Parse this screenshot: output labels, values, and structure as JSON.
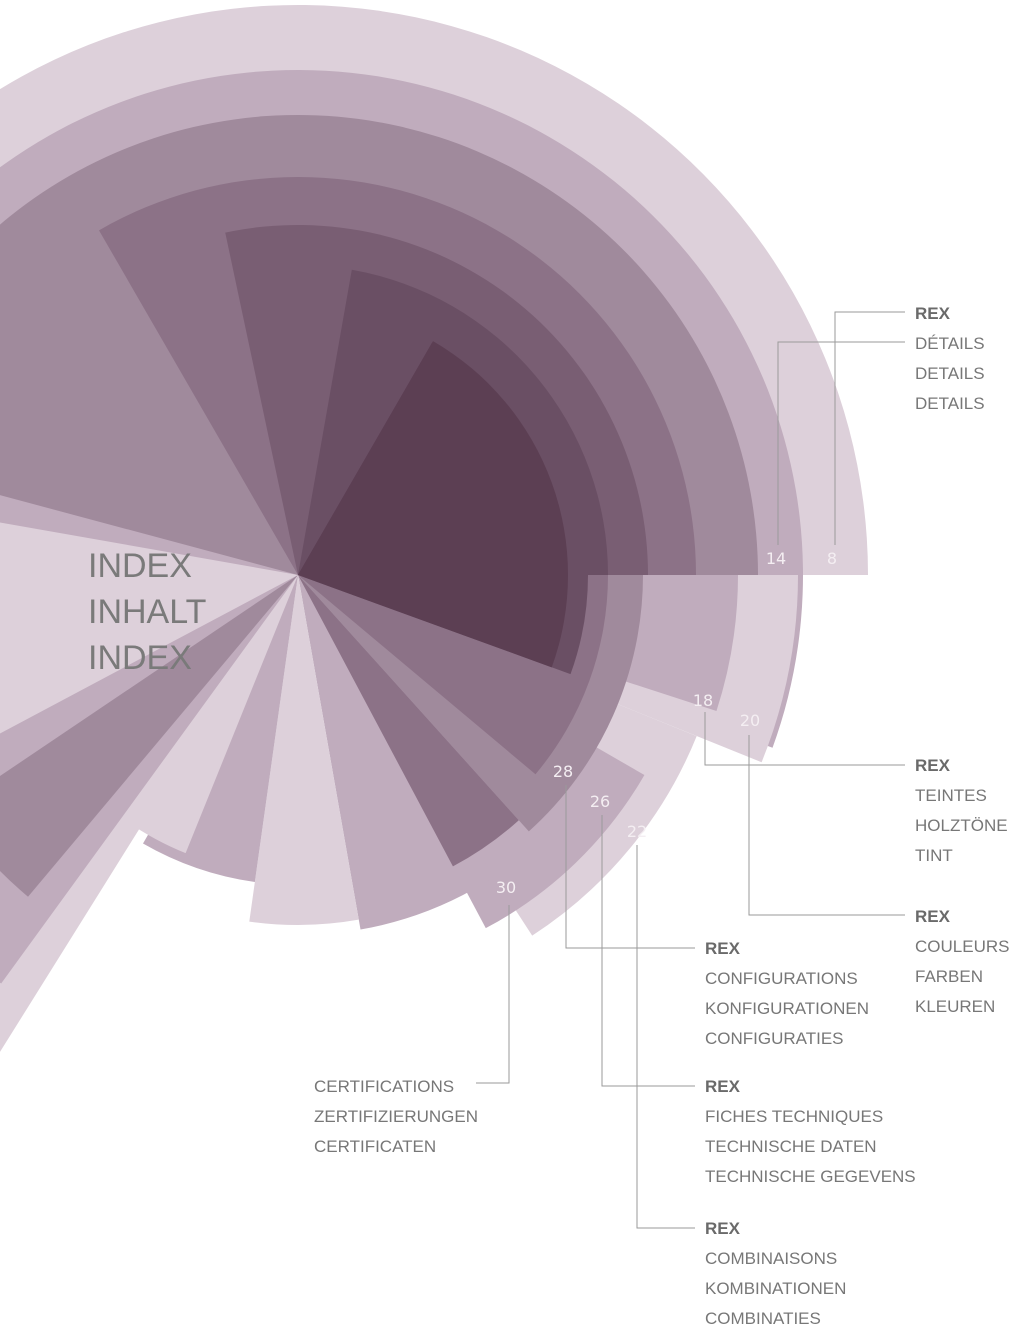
{
  "title": [
    "INDEX",
    "INHALT",
    "INDEX"
  ],
  "blocks": [
    {
      "pages": [
        8,
        14
      ],
      "heading": "REX",
      "lines": [
        "DÉTAILS",
        "DETAILS",
        "DETAILS"
      ]
    },
    {
      "pages": [
        18
      ],
      "heading": "REX",
      "lines": [
        "TEINTES",
        "HOLZTÖNE",
        "TINT"
      ]
    },
    {
      "pages": [
        20
      ],
      "heading": "REX",
      "lines": [
        "COULEURS",
        "FARBEN",
        "KLEUREN"
      ]
    },
    {
      "pages": [
        28
      ],
      "heading": "REX",
      "lines": [
        "CONFIGURATIONS",
        "KONFIGURATIONEN",
        "CONFIGURATIES"
      ]
    },
    {
      "pages": [
        26
      ],
      "heading": "REX",
      "lines": [
        "FICHES TECHNIQUES",
        "TECHNISCHE DATEN",
        "TECHNISCHE GEGEVENS"
      ]
    },
    {
      "pages": [
        22
      ],
      "heading": "REX",
      "lines": [
        "COMBINAISONS",
        "KOMBINATIONEN",
        "COMBINATIES"
      ]
    },
    {
      "pages": [
        30
      ],
      "lines": [
        "CERTIFICATIONS",
        "ZERTIFIZIERUNGEN",
        "CERTIFICATEN"
      ]
    }
  ]
}
